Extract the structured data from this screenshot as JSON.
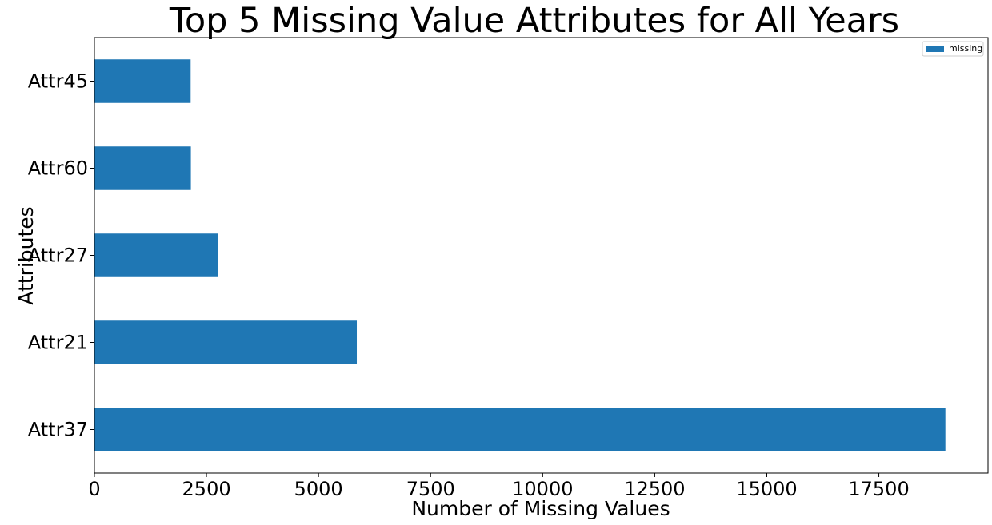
{
  "chart_data": {
    "type": "bar",
    "orientation": "horizontal",
    "title": "Top 5 Missing Value Attributes for All Years",
    "xlabel": "Number of Missing Values",
    "ylabel": "Attributes",
    "categories": [
      "Attr37",
      "Attr21",
      "Attr27",
      "Attr60",
      "Attr45"
    ],
    "series": [
      {
        "name": "missing",
        "color": "#1f77b4",
        "values": [
          18984,
          5854,
          2764,
          2152,
          2147
        ]
      }
    ],
    "xlim": [
      0,
      19935
    ],
    "xticks": [
      0,
      2500,
      5000,
      7500,
      10000,
      12500,
      15000,
      17500
    ],
    "xtick_labels": [
      "0",
      "2500",
      "5000",
      "7500",
      "10000",
      "12500",
      "15000",
      "17500"
    ],
    "grid": false,
    "legend": {
      "position": "top-right",
      "labels": [
        "missing"
      ]
    }
  }
}
